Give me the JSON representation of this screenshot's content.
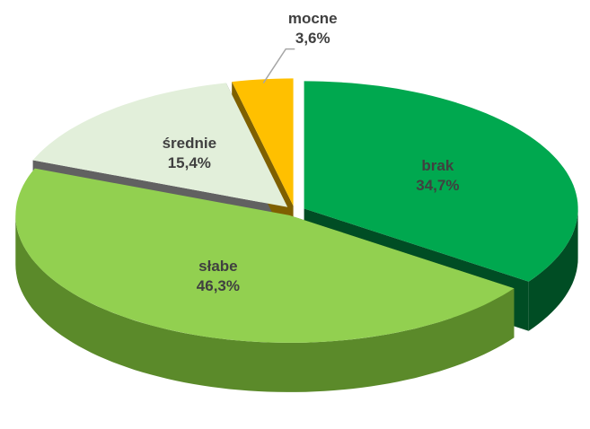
{
  "chart_data": {
    "type": "pie3d",
    "categories": [
      "brak",
      "słabe",
      "średnie",
      "mocne"
    ],
    "values": [
      34.7,
      46.3,
      15.4,
      3.6
    ],
    "value_labels": [
      "34,7%",
      "46,3%",
      "15,4%",
      "3,6%"
    ],
    "colors": [
      "#00a84f",
      "#92d050",
      "#e2efda",
      "#ffc000"
    ],
    "side_colors": [
      "#004d24",
      "#5b8a2a",
      "#616161",
      "#7f6000"
    ]
  }
}
